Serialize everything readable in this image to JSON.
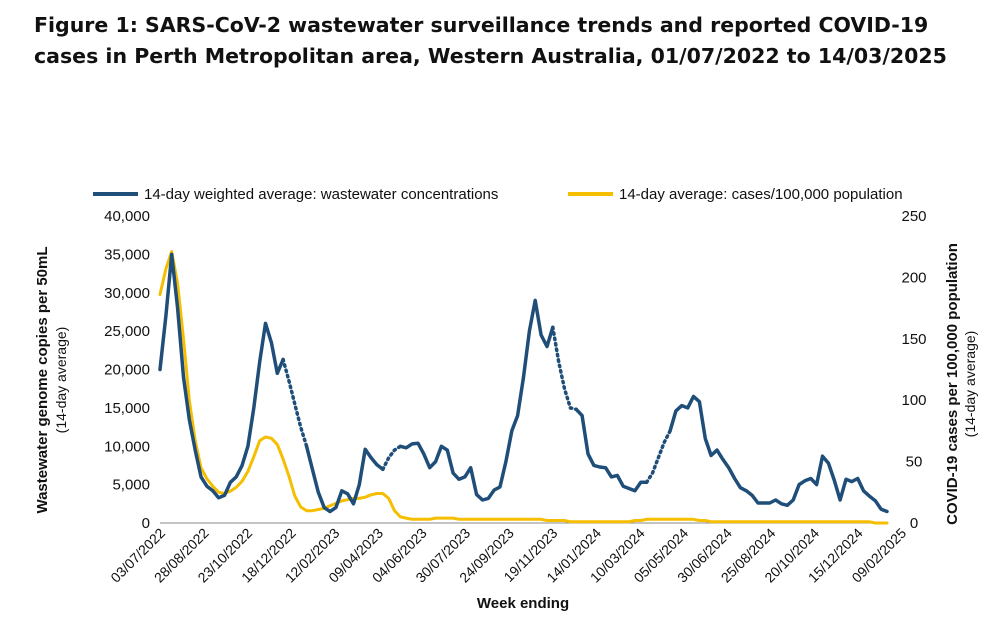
{
  "title": "Figure 1: SARS-CoV-2 wastewater surveillance trends and reported COVID-19 cases in Perth Metropolitan area, Western Australia, 01/07/2022 to 14/03/2025",
  "chart_data": {
    "type": "line",
    "title": "Figure 1: SARS-CoV-2 wastewater surveillance trends and reported COVID-19 cases in Perth Metropolitan area, Western Australia, 01/07/2022 to 14/03/2025",
    "xlabel": "Week ending",
    "ylabel_left": "Wastewater genome copies per 50mL",
    "ylabel_left_sub": "(14-day average)",
    "ylabel_right": "COVID-19 cases per 100,000 population",
    "ylabel_right_sub": "(14-day average)",
    "ylim_left": [
      0,
      40000
    ],
    "ylim_right": [
      0,
      250
    ],
    "yticks_left": [
      "40,000",
      "35,000",
      "30,000",
      "25,000",
      "20,000",
      "15,000",
      "10,000",
      "5,000",
      "0"
    ],
    "yticks_right": [
      "250",
      "200",
      "150",
      "100",
      "50",
      "0"
    ],
    "week_count": 140,
    "x_tick_labels": [
      "03/07/2022",
      "28/08/2022",
      "23/10/2022",
      "18/12/2022",
      "12/02/2023",
      "09/04/2023",
      "04/06/2023",
      "30/07/2023",
      "24/09/2023",
      "19/11/2023",
      "14/01/2024",
      "10/03/2024",
      "05/05/2024",
      "30/06/2024",
      "25/08/2024",
      "20/10/2024",
      "15/12/2024",
      "09/02/2025"
    ],
    "series": [
      {
        "name": "14-day weighted average: wastewater concentrations",
        "color": "#1f4e79",
        "axis": "left",
        "points": [
          [
            0,
            20000
          ],
          [
            1,
            27000
          ],
          [
            2,
            35000
          ],
          [
            3,
            28000
          ],
          [
            4,
            19000
          ],
          [
            5,
            13500
          ],
          [
            6,
            9500
          ],
          [
            7,
            6000
          ],
          [
            8,
            4800
          ],
          [
            9,
            4200
          ],
          [
            10,
            3300
          ],
          [
            11,
            3600
          ],
          [
            12,
            5300
          ],
          [
            13,
            6000
          ],
          [
            14,
            7500
          ],
          [
            15,
            10000
          ],
          [
            16,
            15000
          ],
          [
            17,
            21000
          ],
          [
            18,
            26000
          ],
          [
            19,
            23500
          ],
          [
            20,
            19500
          ],
          [
            21,
            21300
          ],
          [
            22,
            null
          ],
          [
            23,
            null
          ],
          [
            24,
            null
          ],
          [
            25,
            10000
          ],
          [
            26,
            7000
          ],
          [
            27,
            4000
          ],
          [
            28,
            2000
          ],
          [
            29,
            1500
          ],
          [
            30,
            2000
          ],
          [
            31,
            4200
          ],
          [
            32,
            3800
          ],
          [
            33,
            2500
          ],
          [
            34,
            5000
          ],
          [
            35,
            9600
          ],
          [
            36,
            8500
          ],
          [
            37,
            7600
          ],
          [
            38,
            7000
          ],
          [
            39,
            null
          ],
          [
            40,
            null
          ],
          [
            41,
            10000
          ],
          [
            42,
            9800
          ],
          [
            43,
            10300
          ],
          [
            44,
            10400
          ],
          [
            45,
            9000
          ],
          [
            46,
            7200
          ],
          [
            47,
            8000
          ],
          [
            48,
            10000
          ],
          [
            49,
            9500
          ],
          [
            50,
            6500
          ],
          [
            51,
            5700
          ],
          [
            52,
            6000
          ],
          [
            53,
            7200
          ],
          [
            54,
            3700
          ],
          [
            55,
            3000
          ],
          [
            56,
            3200
          ],
          [
            57,
            4300
          ],
          [
            58,
            4700
          ],
          [
            59,
            8000
          ],
          [
            60,
            12000
          ],
          [
            61,
            14000
          ],
          [
            62,
            19000
          ],
          [
            63,
            25000
          ],
          [
            64,
            29000
          ],
          [
            65,
            24500
          ],
          [
            66,
            23000
          ],
          [
            67,
            25500
          ],
          [
            68,
            null
          ],
          [
            69,
            null
          ],
          [
            70,
            null
          ],
          [
            71,
            14800
          ],
          [
            72,
            14000
          ],
          [
            73,
            9000
          ],
          [
            74,
            7500
          ],
          [
            75,
            7300
          ],
          [
            76,
            7200
          ],
          [
            77,
            6000
          ],
          [
            78,
            6200
          ],
          [
            79,
            4800
          ],
          [
            80,
            4500
          ],
          [
            81,
            4200
          ],
          [
            82,
            5300
          ],
          [
            83,
            5300
          ],
          [
            84,
            null
          ],
          [
            85,
            null
          ],
          [
            86,
            null
          ],
          [
            87,
            12000
          ],
          [
            88,
            14600
          ],
          [
            89,
            15300
          ],
          [
            90,
            15000
          ],
          [
            91,
            16500
          ],
          [
            92,
            15800
          ],
          [
            93,
            11000
          ],
          [
            94,
            8800
          ],
          [
            95,
            9500
          ],
          [
            96,
            8300
          ],
          [
            97,
            7200
          ],
          [
            98,
            5800
          ],
          [
            99,
            4600
          ],
          [
            100,
            4200
          ],
          [
            101,
            3600
          ],
          [
            102,
            2600
          ],
          [
            103,
            2600
          ],
          [
            104,
            2600
          ],
          [
            105,
            3000
          ],
          [
            106,
            2500
          ],
          [
            107,
            2300
          ],
          [
            108,
            3000
          ],
          [
            109,
            5000
          ],
          [
            110,
            5500
          ],
          [
            111,
            5800
          ],
          [
            112,
            5000
          ],
          [
            113,
            8700
          ],
          [
            114,
            7800
          ],
          [
            115,
            5600
          ],
          [
            116,
            3000
          ],
          [
            117,
            5700
          ],
          [
            118,
            5400
          ],
          [
            119,
            5800
          ],
          [
            120,
            4200
          ],
          [
            121,
            3500
          ],
          [
            122,
            2900
          ],
          [
            123,
            1800
          ],
          [
            124,
            1500
          ]
        ],
        "dotted_points": [
          [
            67,
            25500
          ],
          [
            68,
            21000
          ],
          [
            69,
            17500
          ],
          [
            70,
            15000
          ],
          [
            71,
            14800
          ],
          [
            21,
            21300
          ],
          [
            22,
            18500
          ],
          [
            23,
            15500
          ],
          [
            24,
            12500
          ],
          [
            25,
            10000
          ],
          [
            38,
            7000
          ],
          [
            39,
            8500
          ],
          [
            40,
            9500
          ],
          [
            41,
            10000
          ],
          [
            83,
            5300
          ],
          [
            84,
            6500
          ],
          [
            85,
            8500
          ],
          [
            86,
            10500
          ],
          [
            87,
            12000
          ]
        ]
      },
      {
        "name": "14-day average: cases/100,000 population",
        "color": "#f5be00",
        "axis": "right",
        "points": [
          [
            0,
            186
          ],
          [
            1,
            207
          ],
          [
            2,
            221
          ],
          [
            3,
            195
          ],
          [
            4,
            150
          ],
          [
            5,
            100
          ],
          [
            6,
            67
          ],
          [
            7,
            45
          ],
          [
            8,
            36
          ],
          [
            9,
            30
          ],
          [
            10,
            25
          ],
          [
            11,
            24
          ],
          [
            12,
            26
          ],
          [
            13,
            29
          ],
          [
            14,
            34
          ],
          [
            15,
            42
          ],
          [
            16,
            54
          ],
          [
            17,
            67
          ],
          [
            18,
            70
          ],
          [
            19,
            69
          ],
          [
            20,
            64
          ],
          [
            21,
            52
          ],
          [
            22,
            38
          ],
          [
            23,
            22
          ],
          [
            24,
            13
          ],
          [
            25,
            10
          ],
          [
            26,
            10
          ],
          [
            27,
            11
          ],
          [
            28,
            12
          ],
          [
            29,
            14
          ],
          [
            30,
            16
          ],
          [
            31,
            18
          ],
          [
            32,
            19
          ],
          [
            33,
            20
          ],
          [
            34,
            20
          ],
          [
            35,
            21
          ],
          [
            36,
            23
          ],
          [
            37,
            24
          ],
          [
            38,
            24
          ],
          [
            39,
            20
          ],
          [
            40,
            10
          ],
          [
            41,
            5
          ],
          [
            42,
            4
          ],
          [
            43,
            3
          ],
          [
            44,
            3
          ],
          [
            45,
            3
          ],
          [
            46,
            3
          ],
          [
            47,
            4
          ],
          [
            48,
            4
          ],
          [
            49,
            4
          ],
          [
            50,
            4
          ],
          [
            51,
            3
          ],
          [
            52,
            3
          ],
          [
            53,
            3
          ],
          [
            54,
            3
          ],
          [
            55,
            3
          ],
          [
            56,
            3
          ],
          [
            57,
            3
          ],
          [
            58,
            3
          ],
          [
            59,
            3
          ],
          [
            60,
            3
          ],
          [
            61,
            3
          ],
          [
            62,
            3
          ],
          [
            63,
            3
          ],
          [
            64,
            3
          ],
          [
            65,
            3
          ],
          [
            66,
            2
          ],
          [
            67,
            2
          ],
          [
            68,
            2
          ],
          [
            69,
            2
          ],
          [
            70,
            1
          ],
          [
            71,
            1
          ],
          [
            72,
            1
          ],
          [
            73,
            1
          ],
          [
            74,
            1
          ],
          [
            75,
            1
          ],
          [
            76,
            1
          ],
          [
            77,
            1
          ],
          [
            78,
            1
          ],
          [
            79,
            1
          ],
          [
            80,
            1
          ],
          [
            81,
            2
          ],
          [
            82,
            2
          ],
          [
            83,
            3
          ],
          [
            84,
            3
          ],
          [
            85,
            3
          ],
          [
            86,
            3
          ],
          [
            87,
            3
          ],
          [
            88,
            3
          ],
          [
            89,
            3
          ],
          [
            90,
            3
          ],
          [
            91,
            3
          ],
          [
            92,
            2
          ],
          [
            93,
            2
          ],
          [
            94,
            1
          ],
          [
            95,
            1
          ],
          [
            96,
            1
          ],
          [
            97,
            1
          ],
          [
            98,
            1
          ],
          [
            99,
            1
          ],
          [
            100,
            1
          ],
          [
            101,
            1
          ],
          [
            102,
            1
          ],
          [
            103,
            1
          ],
          [
            104,
            1
          ],
          [
            105,
            1
          ],
          [
            106,
            1
          ],
          [
            107,
            1
          ],
          [
            108,
            1
          ],
          [
            109,
            1
          ],
          [
            110,
            1
          ],
          [
            111,
            1
          ],
          [
            112,
            1
          ],
          [
            113,
            1
          ],
          [
            114,
            1
          ],
          [
            115,
            1
          ],
          [
            116,
            1
          ],
          [
            117,
            1
          ],
          [
            118,
            1
          ],
          [
            119,
            1
          ],
          [
            120,
            1
          ],
          [
            121,
            1
          ],
          [
            122,
            0
          ],
          [
            123,
            0
          ],
          [
            124,
            0
          ]
        ]
      }
    ],
    "legend_position": "top"
  }
}
